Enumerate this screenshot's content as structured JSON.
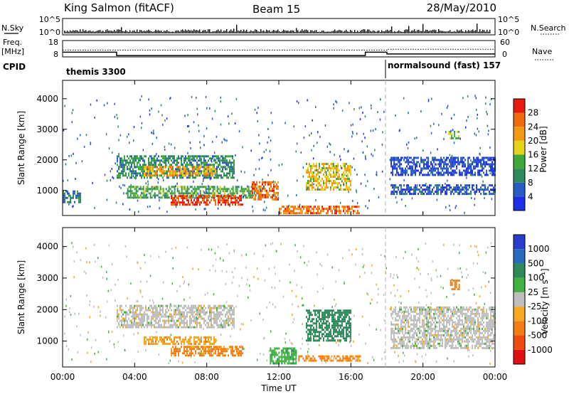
{
  "header": {
    "station": "King Salmon (fitACF)",
    "beam": "Beam 15",
    "date": "28/May/2010"
  },
  "panels": {
    "nsky_label": "N.Sky",
    "nsky_ticks": [
      "10^5",
      "10^0"
    ],
    "nsearch_label": "N.Search",
    "freq_label": "Freq.",
    "freq_unit": "[MHz]",
    "freq_ticks": [
      "18",
      "8"
    ],
    "nave_label": "Nave",
    "nave_ticks": [
      "60",
      "0"
    ],
    "cpid_label": "CPID",
    "cpid_segments": [
      {
        "name": "themis 3300",
        "start_hour": 0,
        "end_hour": 18.0
      },
      {
        "name": "normalsound (fast) 157",
        "start_hour": 18.0,
        "end_hour": 24
      }
    ]
  },
  "axes": {
    "xlabel": "Time UT",
    "x_ticks": [
      "00:00",
      "04:00",
      "08:00",
      "12:00",
      "16:00",
      "20:00",
      "00:00"
    ],
    "ylabel": "Slant Range [km]",
    "y_ticks": [
      "1000",
      "2000",
      "3000",
      "4000"
    ]
  },
  "colorbars": {
    "power_label": "Power [dB]",
    "power_ticks": [
      "4",
      "8",
      "12",
      "16",
      "20",
      "24",
      "28"
    ],
    "power_colors": [
      "#1e2ee6",
      "#2a5cc8",
      "#2e8a5a",
      "#3faa3a",
      "#e6d21a",
      "#f29a18",
      "#f06a10",
      "#e61a10"
    ],
    "velocity_label": "Velocity [m s⁻¹]",
    "velocity_ticks": [
      "1000",
      "500",
      "100",
      "25",
      "-25",
      "-100",
      "-500",
      "-1000"
    ],
    "velocity_colors": [
      "#2b3cc8",
      "#2a6abf",
      "#2e8a5a",
      "#43b043",
      "#bebebe",
      "#f5a822",
      "#f07e12",
      "#ee4a12",
      "#e01010"
    ]
  },
  "chart_data": {
    "type": "heatmap",
    "title": "King Salmon (fitACF)",
    "xlabel": "Time UT",
    "ylabel": "Slant Range [km]",
    "x_range_hours": [
      0,
      24
    ],
    "y_range_km": [
      180,
      4600
    ],
    "nsky": {
      "ticks": [
        "10^0",
        "10^5"
      ]
    },
    "frequency_mhz": [
      {
        "start_hour": 0,
        "end_hour": 3.0,
        "value": 10.9
      },
      {
        "start_hour": 3.0,
        "end_hour": 16.8,
        "value": 8.8
      },
      {
        "start_hour": 16.8,
        "end_hour": 18.0,
        "value": 10.9
      },
      {
        "start_hour": 18.0,
        "end_hour": 24,
        "value": 9.8
      }
    ],
    "nave": {
      "level_before_18h": 25,
      "level_after_18h": 28
    },
    "power_db": {
      "range": [
        0,
        30
      ],
      "regions": [
        {
          "t0": 3.0,
          "t1": 9.5,
          "r0": 1450,
          "r1": 2150,
          "value": 10
        },
        {
          "t0": 4.5,
          "t1": 8.5,
          "r0": 1500,
          "r1": 1800,
          "value": 20
        },
        {
          "t0": 3.5,
          "t1": 11.0,
          "r0": 800,
          "r1": 1150,
          "value": 12
        },
        {
          "t0": 6.0,
          "t1": 10.0,
          "r0": 550,
          "r1": 850,
          "value": 27
        },
        {
          "t0": 10.5,
          "t1": 12.0,
          "r0": 700,
          "r1": 1300,
          "value": 24
        },
        {
          "t0": 12.0,
          "t1": 16.5,
          "r0": 250,
          "r1": 500,
          "value": 24
        },
        {
          "t0": 13.5,
          "t1": 16.0,
          "r0": 1000,
          "r1": 1900,
          "value": 18
        },
        {
          "t0": 0.0,
          "t1": 1.0,
          "r0": 650,
          "r1": 1000,
          "value": 8
        },
        {
          "t0": 18.2,
          "t1": 24.0,
          "r0": 900,
          "r1": 1200,
          "value": 5
        },
        {
          "t0": 18.2,
          "t1": 24.0,
          "r0": 1500,
          "r1": 2100,
          "value": 4
        },
        {
          "t0": 21.4,
          "t1": 22.0,
          "r0": 2700,
          "r1": 2950,
          "value": 14
        }
      ]
    },
    "velocity_ms": {
      "range": [
        -1000,
        1000
      ],
      "regions": [
        {
          "t0": 3.0,
          "t1": 9.5,
          "r0": 1450,
          "r1": 2150,
          "value": 0
        },
        {
          "t0": 6.0,
          "t1": 10.0,
          "r0": 550,
          "r1": 850,
          "value": -120
        },
        {
          "t0": 4.5,
          "t1": 8.5,
          "r0": 900,
          "r1": 1150,
          "value": -80
        },
        {
          "t0": 11.5,
          "t1": 13.0,
          "r0": 300,
          "r1": 800,
          "value": 80
        },
        {
          "t0": 13.0,
          "t1": 16.5,
          "r0": 350,
          "r1": 550,
          "value": -120
        },
        {
          "t0": 13.5,
          "t1": 16.0,
          "r0": 1000,
          "r1": 2000,
          "value": 300
        },
        {
          "t0": 18.2,
          "t1": 24.0,
          "r0": 800,
          "r1": 2100,
          "value": 0
        },
        {
          "t0": 21.5,
          "t1": 22.0,
          "r0": 2650,
          "r1": 2950,
          "value": -150
        }
      ]
    }
  }
}
